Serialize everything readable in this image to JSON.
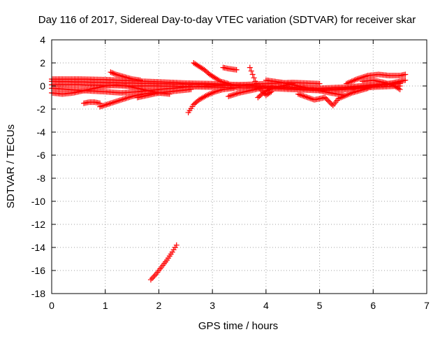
{
  "chart_data": {
    "type": "scatter",
    "title": "Day 116 of 2017, Sidereal Day-to-day VTEC variation (SDTVAR) for receiver skar",
    "xlabel": "GPS time / hours",
    "ylabel": "SDTVAR / TECUs",
    "xlim": [
      0,
      7
    ],
    "ylim": [
      -18,
      4
    ],
    "xticks": [
      0,
      1,
      2,
      3,
      4,
      5,
      6,
      7
    ],
    "yticks": [
      4,
      2,
      0,
      -2,
      -4,
      -6,
      -8,
      -10,
      -12,
      -14,
      -16,
      -18
    ],
    "grid": true,
    "marker": "plus",
    "color": "#ff0000",
    "series": [
      {
        "name": "",
        "segments": [
          [
            [
              0.0,
              0.6
            ],
            [
              0.5,
              0.6
            ],
            [
              1.0,
              0.55
            ],
            [
              1.5,
              0.45
            ],
            [
              2.0,
              0.35
            ],
            [
              2.5,
              0.25
            ],
            [
              3.0,
              0.2
            ],
            [
              3.5,
              0.1
            ],
            [
              4.0,
              0.0
            ],
            [
              4.5,
              -0.1
            ],
            [
              5.0,
              -0.2
            ],
            [
              5.5,
              -0.1
            ],
            [
              6.0,
              0.1
            ],
            [
              6.5,
              0.3
            ]
          ],
          [
            [
              0.0,
              0.4
            ],
            [
              0.5,
              0.35
            ],
            [
              1.0,
              0.3
            ],
            [
              1.5,
              0.25
            ],
            [
              2.0,
              0.2
            ],
            [
              2.5,
              0.15
            ],
            [
              3.0,
              0.1
            ],
            [
              3.5,
              0.0
            ],
            [
              4.0,
              -0.1
            ],
            [
              4.5,
              -0.2
            ],
            [
              5.0,
              -0.3
            ],
            [
              5.5,
              -0.2
            ],
            [
              6.0,
              0.0
            ],
            [
              6.5,
              0.2
            ]
          ],
          [
            [
              0.0,
              0.1
            ],
            [
              0.5,
              0.1
            ],
            [
              1.0,
              0.05
            ],
            [
              1.5,
              0.0
            ],
            [
              2.0,
              0.0
            ],
            [
              2.5,
              -0.05
            ],
            [
              3.0,
              -0.1
            ],
            [
              3.5,
              -0.15
            ],
            [
              4.0,
              -0.2
            ],
            [
              4.5,
              -0.3
            ],
            [
              5.0,
              -0.4
            ],
            [
              5.5,
              -0.3
            ],
            [
              6.0,
              -0.1
            ],
            [
              6.5,
              0.0
            ]
          ],
          [
            [
              0.0,
              -0.2
            ],
            [
              0.3,
              -0.3
            ],
            [
              0.6,
              -0.4
            ],
            [
              1.0,
              -0.5
            ],
            [
              1.3,
              -0.6
            ],
            [
              1.6,
              -0.5
            ],
            [
              2.0,
              -0.3
            ],
            [
              2.5,
              -0.1
            ],
            [
              3.0,
              0.0
            ],
            [
              3.5,
              0.1
            ],
            [
              4.0,
              0.2
            ],
            [
              4.5,
              0.3
            ],
            [
              5.0,
              0.2
            ]
          ],
          [
            [
              0.0,
              -0.6
            ],
            [
              0.2,
              -0.7
            ],
            [
              0.4,
              -0.6
            ],
            [
              0.6,
              -0.4
            ],
            [
              0.8,
              -0.2
            ],
            [
              1.0,
              0.0
            ],
            [
              1.2,
              0.1
            ],
            [
              1.4,
              0.0
            ],
            [
              1.6,
              -0.2
            ],
            [
              1.8,
              -0.4
            ],
            [
              2.0,
              -0.6
            ],
            [
              2.2,
              -0.7
            ]
          ],
          [
            [
              0.6,
              -1.5
            ],
            [
              0.7,
              -1.4
            ],
            [
              0.8,
              -1.4
            ],
            [
              0.9,
              -1.5
            ]
          ],
          [
            [
              0.9,
              -1.8
            ],
            [
              1.1,
              -1.5
            ],
            [
              1.3,
              -1.2
            ],
            [
              1.5,
              -0.9
            ],
            [
              1.7,
              -0.7
            ],
            [
              1.9,
              -0.6
            ]
          ],
          [
            [
              1.1,
              1.2
            ],
            [
              1.2,
              1.0
            ],
            [
              1.35,
              0.8
            ],
            [
              1.5,
              0.6
            ],
            [
              1.65,
              0.5
            ]
          ],
          [
            [
              1.6,
              -1.0
            ],
            [
              1.8,
              -0.8
            ],
            [
              2.0,
              -0.6
            ],
            [
              2.2,
              -0.5
            ],
            [
              2.4,
              -0.4
            ],
            [
              2.6,
              -0.3
            ]
          ],
          [
            [
              2.55,
              -2.3
            ],
            [
              2.65,
              -1.6
            ],
            [
              2.75,
              -1.2
            ],
            [
              2.9,
              -0.8
            ],
            [
              3.05,
              -0.5
            ],
            [
              3.2,
              -0.3
            ],
            [
              3.4,
              -0.2
            ]
          ],
          [
            [
              2.65,
              2.0
            ],
            [
              2.75,
              1.7
            ],
            [
              2.85,
              1.4
            ],
            [
              2.95,
              1.0
            ],
            [
              3.05,
              0.7
            ],
            [
              3.15,
              0.4
            ],
            [
              3.3,
              0.2
            ]
          ],
          [
            [
              3.2,
              1.6
            ],
            [
              3.3,
              1.5
            ],
            [
              3.45,
              1.4
            ]
          ],
          [
            [
              3.3,
              -0.9
            ],
            [
              3.5,
              -0.6
            ],
            [
              3.7,
              -0.4
            ],
            [
              3.9,
              -0.2
            ]
          ],
          [
            [
              3.7,
              1.6
            ],
            [
              3.75,
              1.0
            ],
            [
              3.8,
              0.4
            ],
            [
              3.9,
              -0.3
            ],
            [
              4.0,
              -0.8
            ],
            [
              4.1,
              -0.5
            ]
          ],
          [
            [
              3.85,
              -1.0
            ],
            [
              3.95,
              -0.6
            ],
            [
              4.1,
              -0.2
            ],
            [
              4.3,
              0.0
            ],
            [
              4.5,
              0.2
            ]
          ],
          [
            [
              4.0,
              0.5
            ],
            [
              4.3,
              0.3
            ],
            [
              4.6,
              0.0
            ],
            [
              4.9,
              -0.3
            ],
            [
              5.2,
              -0.6
            ],
            [
              5.45,
              -0.8
            ]
          ],
          [
            [
              4.6,
              -0.7
            ],
            [
              4.9,
              -1.2
            ],
            [
              5.1,
              -1.0
            ],
            [
              5.25,
              -1.7
            ],
            [
              5.35,
              -1.1
            ],
            [
              5.6,
              -0.6
            ],
            [
              5.9,
              -0.2
            ]
          ],
          [
            [
              5.5,
              0.2
            ],
            [
              5.7,
              0.6
            ],
            [
              5.9,
              0.9
            ],
            [
              6.1,
              1.0
            ],
            [
              6.3,
              0.9
            ],
            [
              6.5,
              0.9
            ],
            [
              6.6,
              1.0
            ]
          ],
          [
            [
              5.6,
              -0.3
            ],
            [
              5.9,
              -0.1
            ],
            [
              6.2,
              0.1
            ],
            [
              6.4,
              0.3
            ],
            [
              6.6,
              0.5
            ]
          ],
          [
            [
              5.8,
              0.4
            ],
            [
              6.0,
              0.5
            ],
            [
              6.2,
              0.3
            ],
            [
              6.4,
              0.0
            ],
            [
              6.5,
              -0.3
            ]
          ],
          [
            [
              1.85,
              -16.8
            ],
            [
              1.95,
              -16.3
            ],
            [
              2.05,
              -15.7
            ],
            [
              2.15,
              -15.1
            ],
            [
              2.25,
              -14.4
            ],
            [
              2.33,
              -13.8
            ]
          ]
        ]
      }
    ]
  }
}
